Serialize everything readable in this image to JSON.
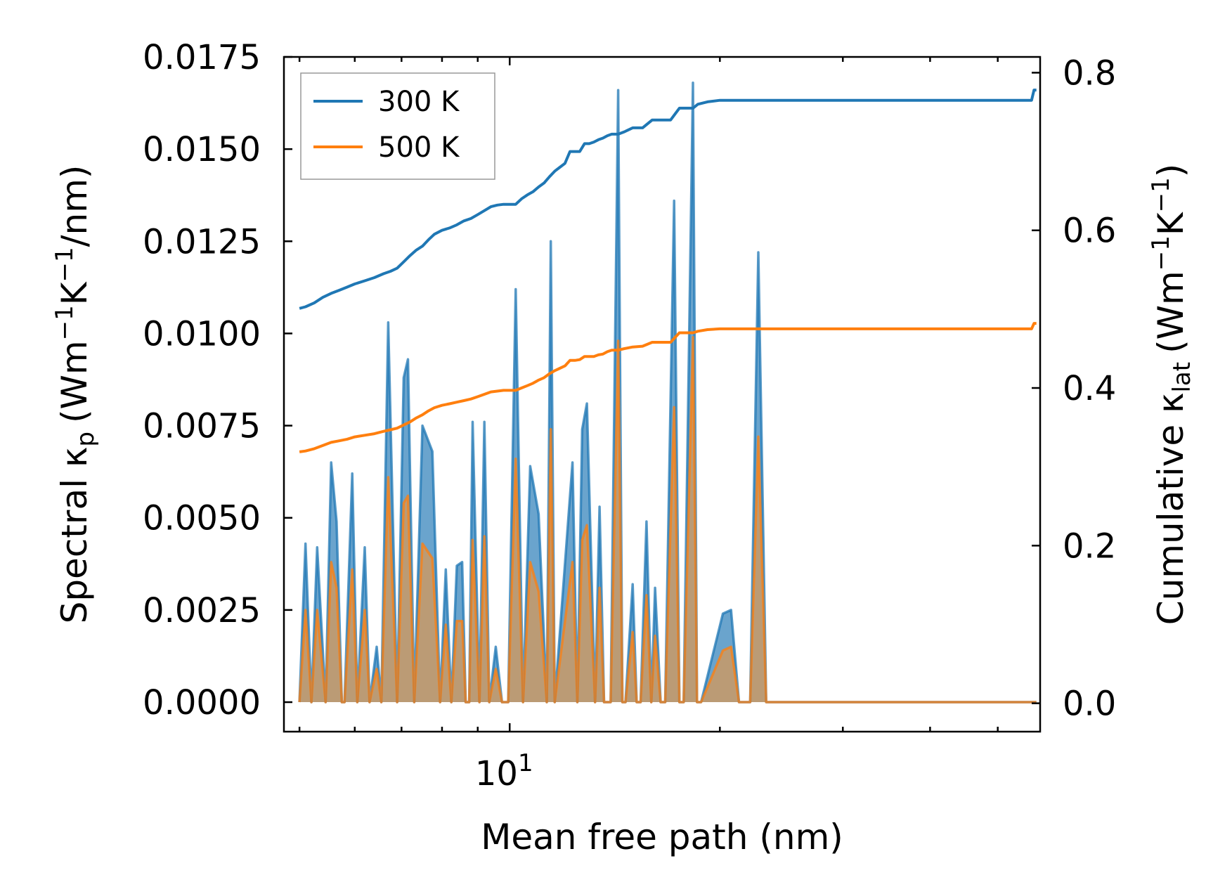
{
  "chart_data": {
    "type": "line",
    "title": "",
    "xlabel": "Mean free path (nm)",
    "xscale": "log",
    "xlim": [
      4.75,
      57.5
    ],
    "x_ticks": [
      {
        "value": 10,
        "label": "10",
        "exponent": "1"
      }
    ],
    "ylabel_left": {
      "main": "Spectral κ",
      "sub": "p",
      "unit": "(Wm",
      "e1": "−1",
      "k": "K",
      "e2": "−1",
      "tail": "/nm)"
    },
    "ylabel_right": {
      "main": "Cumulative κ",
      "sub": "lat",
      "unit": "(Wm",
      "e1": "−1",
      "k": "K",
      "e2": "−1",
      "tail": ")"
    },
    "ylim_left": [
      -0.0008,
      0.0175
    ],
    "ylim_right": [
      -0.036,
      0.82
    ],
    "left_ticks": [
      "0.0000",
      "0.0025",
      "0.0050",
      "0.0075",
      "0.0100",
      "0.0125",
      "0.0150",
      "0.0175"
    ],
    "right_ticks": [
      "0.0",
      "0.2",
      "0.4",
      "0.6",
      "0.8"
    ],
    "legend": {
      "position": "upper-left",
      "entries": [
        "300 K",
        "500 K"
      ]
    },
    "colors": {
      "s300": "#1f77b4",
      "s500": "#ff7f0e",
      "fill300": "#5a9ac8",
      "fill500": "#c49a6c"
    },
    "spectral_300K": {
      "x": [
        5.0,
        5.1,
        5.2,
        5.3,
        5.45,
        5.55,
        5.65,
        5.75,
        5.8,
        5.95,
        6.05,
        6.2,
        6.3,
        6.45,
        6.55,
        6.7,
        6.9,
        7.05,
        7.15,
        7.3,
        7.5,
        7.75,
        7.95,
        8.1,
        8.25,
        8.4,
        8.55,
        8.65,
        8.75,
        8.85,
        9.05,
        9.2,
        9.35,
        9.55,
        9.75,
        9.95,
        10.2,
        10.45,
        10.7,
        11.0,
        11.3,
        11.45,
        11.6,
        12.3,
        12.5,
        12.7,
        12.9,
        13.25,
        13.45,
        13.65,
        13.95,
        14.3,
        14.5,
        14.65,
        15.0,
        15.2,
        15.4,
        15.7,
        15.95,
        16.15,
        16.45,
        16.7,
        17.2,
        17.5,
        17.75,
        18.3,
        18.55,
        18.8,
        20.2,
        20.75,
        21.3,
        22.1,
        22.7,
        23.3,
        23.65,
        23.95,
        24.4,
        26.0,
        26.5,
        26.9,
        28.7,
        29.2,
        29.6,
        31.1,
        31.5,
        32.2,
        32.55,
        55.9,
        56.35,
        56.8
      ],
      "y": [
        0.0,
        0.0043,
        0.0,
        0.0042,
        0.0,
        0.0065,
        0.0049,
        0.0,
        0.0,
        0.0062,
        0.0,
        0.0042,
        0.0,
        0.0015,
        0.0,
        0.0103,
        0.0,
        0.0088,
        0.0093,
        0.0,
        0.0075,
        0.0068,
        0.0,
        0.0036,
        0.0,
        0.0037,
        0.0038,
        0.0,
        0.0,
        0.0076,
        0.0,
        0.0076,
        0.0,
        0.0015,
        0.0,
        0.0,
        0.0112,
        0.0,
        0.0064,
        0.0051,
        0.0,
        0.0125,
        0.0,
        0.0065,
        0.0,
        0.0074,
        0.0081,
        0.0,
        0.0053,
        0.0,
        0.0,
        0.0166,
        0.0,
        0.0,
        0.0032,
        0.0,
        0.0,
        0.0049,
        0.0,
        0.0031,
        0.0,
        0.0,
        0.0136,
        0.0,
        0.0,
        0.0168,
        0.0,
        0.0,
        0.0024,
        0.0025,
        0.0,
        0.0,
        0.0122,
        0.0,
        0.0,
        0.0,
        0.0,
        0.0,
        0.0,
        0.0,
        0.0,
        0.0,
        0.0,
        0.0,
        0.0,
        0.0,
        0.0,
        0.0,
        0.0,
        0.0
      ]
    },
    "spectral_500K": {
      "x": [
        5.0,
        5.1,
        5.2,
        5.3,
        5.45,
        5.55,
        5.65,
        5.75,
        5.8,
        5.95,
        6.05,
        6.2,
        6.3,
        6.45,
        6.55,
        6.7,
        6.9,
        7.05,
        7.15,
        7.3,
        7.5,
        7.75,
        7.95,
        8.1,
        8.25,
        8.4,
        8.55,
        8.65,
        8.75,
        8.85,
        9.05,
        9.2,
        9.35,
        9.55,
        9.75,
        9.95,
        10.2,
        10.45,
        10.7,
        11.0,
        11.3,
        11.45,
        11.6,
        12.3,
        12.5,
        12.7,
        12.9,
        13.25,
        13.45,
        13.65,
        13.95,
        14.3,
        14.5,
        14.65,
        15.0,
        15.2,
        15.4,
        15.7,
        15.95,
        16.15,
        16.45,
        16.7,
        17.2,
        17.5,
        17.75,
        18.3,
        18.55,
        18.8,
        20.2,
        20.75,
        21.3,
        22.1,
        22.7,
        23.3,
        23.65,
        23.95,
        24.4,
        26.0,
        26.5,
        26.9,
        28.7,
        29.2,
        29.6,
        31.1,
        31.5,
        32.2,
        32.55,
        55.9,
        56.35,
        56.8
      ],
      "y": [
        0.0,
        0.0025,
        0.0,
        0.0025,
        0.0,
        0.0038,
        0.0031,
        0.0,
        0.0,
        0.0036,
        0.0,
        0.0025,
        0.0,
        0.0009,
        0.0,
        0.0061,
        0.0,
        0.0054,
        0.0056,
        0.0,
        0.0043,
        0.0039,
        0.0,
        0.0021,
        0.0,
        0.0022,
        0.0022,
        0.0,
        0.0,
        0.0044,
        0.0,
        0.0045,
        0.0,
        0.0009,
        0.0,
        0.0,
        0.0066,
        0.0,
        0.0038,
        0.003,
        0.0,
        0.0074,
        0.0,
        0.0038,
        0.0,
        0.0044,
        0.0048,
        0.0,
        0.0031,
        0.0,
        0.0,
        0.0098,
        0.0,
        0.0,
        0.0019,
        0.0,
        0.0,
        0.0029,
        0.0,
        0.0018,
        0.0,
        0.0,
        0.008,
        0.0,
        0.0,
        0.0099,
        0.0,
        0.0,
        0.0014,
        0.0015,
        0.0,
        0.0,
        0.0072,
        0.0,
        0.0,
        0.0,
        0.0,
        0.0,
        0.0,
        0.0,
        0.0,
        0.0,
        0.0,
        0.0,
        0.0,
        0.0,
        0.0,
        0.0,
        0.0,
        0.0
      ]
    },
    "cumulative_300K": {
      "x": [
        5.0,
        5.1,
        5.25,
        5.4,
        5.55,
        5.7,
        5.85,
        6.0,
        6.2,
        6.4,
        6.6,
        6.75,
        6.9,
        7.05,
        7.2,
        7.35,
        7.5,
        7.65,
        7.8,
        8.0,
        8.2,
        8.4,
        8.6,
        8.8,
        9.0,
        9.2,
        9.4,
        9.6,
        9.8,
        10.0,
        10.2,
        10.4,
        10.6,
        10.8,
        11.0,
        11.2,
        11.4,
        11.6,
        11.8,
        12.0,
        12.2,
        12.4,
        12.6,
        12.8,
        13.0,
        13.2,
        13.4,
        13.6,
        13.8,
        14.0,
        14.3,
        14.6,
        15.0,
        15.5,
        16.0,
        16.5,
        17.0,
        17.5,
        18.0,
        18.3,
        18.6,
        19.2,
        20.0,
        20.2,
        22.0,
        25.0,
        30.0,
        40.0,
        50.0,
        55.9,
        56.35,
        56.8
      ],
      "y": [
        0.501,
        0.503,
        0.508,
        0.515,
        0.52,
        0.524,
        0.528,
        0.532,
        0.536,
        0.54,
        0.545,
        0.548,
        0.552,
        0.56,
        0.568,
        0.575,
        0.58,
        0.588,
        0.595,
        0.6,
        0.603,
        0.607,
        0.612,
        0.615,
        0.62,
        0.625,
        0.63,
        0.632,
        0.633,
        0.633,
        0.633,
        0.64,
        0.645,
        0.649,
        0.655,
        0.66,
        0.668,
        0.675,
        0.68,
        0.685,
        0.7,
        0.7,
        0.7,
        0.71,
        0.71,
        0.712,
        0.715,
        0.717,
        0.72,
        0.722,
        0.722,
        0.725,
        0.73,
        0.73,
        0.74,
        0.74,
        0.74,
        0.755,
        0.755,
        0.755,
        0.76,
        0.763,
        0.765,
        0.765,
        0.765,
        0.765,
        0.765,
        0.765,
        0.765,
        0.765,
        0.778,
        0.778
      ]
    },
    "cumulative_500K": {
      "x": [
        5.0,
        5.1,
        5.25,
        5.4,
        5.55,
        5.7,
        5.85,
        6.0,
        6.2,
        6.4,
        6.6,
        6.75,
        6.9,
        7.05,
        7.2,
        7.35,
        7.5,
        7.65,
        7.8,
        8.0,
        8.2,
        8.4,
        8.6,
        8.8,
        9.0,
        9.2,
        9.4,
        9.6,
        9.8,
        10.0,
        10.2,
        10.4,
        10.6,
        10.8,
        11.0,
        11.2,
        11.4,
        11.6,
        11.8,
        12.0,
        12.2,
        12.4,
        12.6,
        12.8,
        13.0,
        13.2,
        13.4,
        13.6,
        13.8,
        14.0,
        14.3,
        14.6,
        15.0,
        15.5,
        16.0,
        16.5,
        17.0,
        17.5,
        18.0,
        18.3,
        18.6,
        19.2,
        20.0,
        20.2,
        22.0,
        25.0,
        30.0,
        40.0,
        50.0,
        55.9,
        56.35,
        56.8
      ],
      "y": [
        0.319,
        0.32,
        0.323,
        0.327,
        0.331,
        0.333,
        0.335,
        0.338,
        0.34,
        0.342,
        0.345,
        0.347,
        0.349,
        0.353,
        0.357,
        0.362,
        0.366,
        0.371,
        0.375,
        0.378,
        0.38,
        0.382,
        0.384,
        0.386,
        0.389,
        0.392,
        0.395,
        0.396,
        0.397,
        0.397,
        0.397,
        0.4,
        0.403,
        0.406,
        0.41,
        0.413,
        0.418,
        0.422,
        0.425,
        0.428,
        0.435,
        0.435,
        0.436,
        0.44,
        0.44,
        0.44,
        0.442,
        0.443,
        0.446,
        0.448,
        0.448,
        0.45,
        0.452,
        0.453,
        0.458,
        0.458,
        0.458,
        0.47,
        0.47,
        0.47,
        0.472,
        0.474,
        0.475,
        0.475,
        0.475,
        0.475,
        0.475,
        0.475,
        0.475,
        0.475,
        0.482,
        0.482
      ]
    }
  }
}
